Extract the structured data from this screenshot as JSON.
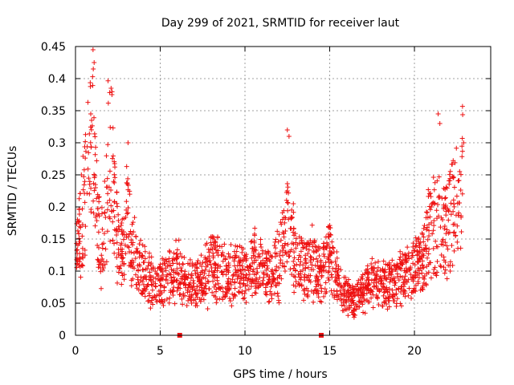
{
  "chart_data": {
    "type": "scatter",
    "title": "Day 299 of 2021, SRMTID for receiver laut",
    "xlabel": "GPS time / hours",
    "ylabel": "SRMTID / TECUs",
    "xlim": [
      0,
      24.5
    ],
    "ylim": [
      0,
      0.45
    ],
    "x_ticks": [
      {
        "value": 0,
        "label": "0"
      },
      {
        "value": 5,
        "label": "5"
      },
      {
        "value": 10,
        "label": "10"
      },
      {
        "value": 15,
        "label": "15"
      },
      {
        "value": 20,
        "label": "20"
      }
    ],
    "y_ticks": [
      {
        "value": 0,
        "label": "0"
      },
      {
        "value": 0.05,
        "label": "0.05"
      },
      {
        "value": 0.1,
        "label": "0.1"
      },
      {
        "value": 0.15,
        "label": "0.15"
      },
      {
        "value": 0.2,
        "label": "0.2"
      },
      {
        "value": 0.25,
        "label": "0.25"
      },
      {
        "value": 0.3,
        "label": "0.3"
      },
      {
        "value": 0.35,
        "label": "0.35"
      },
      {
        "value": 0.4,
        "label": "0.4"
      },
      {
        "value": 0.45,
        "label": "0.45"
      }
    ],
    "grid": true,
    "marker": "plus",
    "marker_color": "#ee1111",
    "gap_markers": [
      6.15,
      14.5
    ],
    "envelope": [
      [
        0.0,
        0.14
      ],
      [
        0.25,
        0.16
      ],
      [
        0.5,
        0.19
      ],
      [
        0.75,
        0.26
      ],
      [
        1.0,
        0.31
      ],
      [
        1.25,
        0.18
      ],
      [
        1.5,
        0.12
      ],
      [
        1.75,
        0.19
      ],
      [
        2.0,
        0.28
      ],
      [
        2.25,
        0.22
      ],
      [
        2.5,
        0.14
      ],
      [
        2.75,
        0.12
      ],
      [
        3.0,
        0.19
      ],
      [
        3.25,
        0.14
      ],
      [
        3.5,
        0.12
      ],
      [
        4.0,
        0.1
      ],
      [
        4.5,
        0.08
      ],
      [
        5.0,
        0.08
      ],
      [
        5.5,
        0.09
      ],
      [
        6.0,
        0.1
      ],
      [
        6.5,
        0.08
      ],
      [
        7.0,
        0.08
      ],
      [
        7.5,
        0.09
      ],
      [
        8.0,
        0.11
      ],
      [
        8.5,
        0.1
      ],
      [
        9.0,
        0.09
      ],
      [
        9.5,
        0.1
      ],
      [
        10.0,
        0.09
      ],
      [
        10.5,
        0.11
      ],
      [
        11.0,
        0.1
      ],
      [
        11.5,
        0.09
      ],
      [
        12.0,
        0.11
      ],
      [
        12.5,
        0.17
      ],
      [
        13.0,
        0.12
      ],
      [
        13.5,
        0.1
      ],
      [
        14.0,
        0.11
      ],
      [
        14.5,
        0.09
      ],
      [
        15.0,
        0.12
      ],
      [
        15.5,
        0.08
      ],
      [
        16.0,
        0.06
      ],
      [
        16.5,
        0.05
      ],
      [
        17.0,
        0.07
      ],
      [
        17.5,
        0.08
      ],
      [
        18.0,
        0.07
      ],
      [
        18.5,
        0.08
      ],
      [
        19.0,
        0.08
      ],
      [
        19.5,
        0.09
      ],
      [
        20.0,
        0.1
      ],
      [
        20.5,
        0.12
      ],
      [
        21.0,
        0.16
      ],
      [
        21.5,
        0.17
      ],
      [
        22.0,
        0.16
      ],
      [
        22.5,
        0.2
      ],
      [
        22.8,
        0.24
      ]
    ],
    "spikes": [
      {
        "x": 1.1,
        "y": 0.425
      },
      {
        "x": 1.05,
        "y": 0.415
      },
      {
        "x": 2.1,
        "y": 0.385
      },
      {
        "x": 2.15,
        "y": 0.375
      },
      {
        "x": 0.9,
        "y": 0.345
      },
      {
        "x": 0.95,
        "y": 0.335
      },
      {
        "x": 21.4,
        "y": 0.345
      },
      {
        "x": 21.5,
        "y": 0.33
      },
      {
        "x": 12.5,
        "y": 0.32
      },
      {
        "x": 12.6,
        "y": 0.31
      },
      {
        "x": 3.1,
        "y": 0.3
      },
      {
        "x": 22.9,
        "y": 0.3
      }
    ]
  }
}
